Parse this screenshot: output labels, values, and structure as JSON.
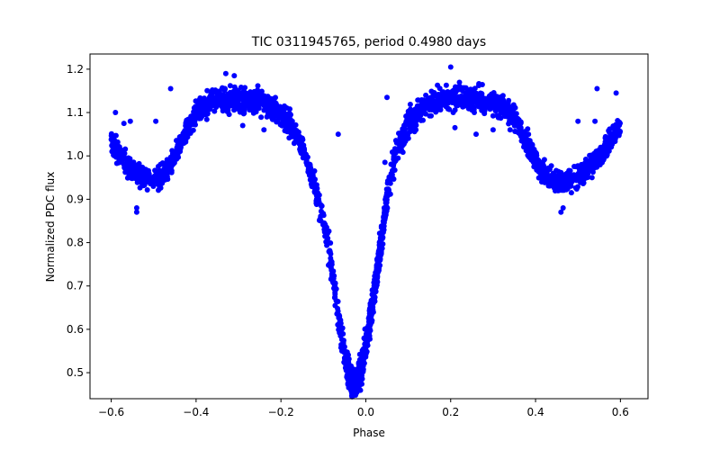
{
  "chart_data": {
    "type": "scatter",
    "title": "TIC 0311945765, period 0.4980 days",
    "xlabel": "Phase",
    "ylabel": "Normalized PDC flux",
    "xlim": [
      -0.65,
      0.665
    ],
    "ylim": [
      0.44,
      1.235
    ],
    "xticks": [
      -0.6,
      -0.4,
      -0.2,
      0.0,
      0.2,
      0.4,
      0.6
    ],
    "xtick_labels": [
      "−0.6",
      "−0.4",
      "−0.2",
      "0.0",
      "0.2",
      "0.4",
      "0.6"
    ],
    "yticks": [
      0.5,
      0.6,
      0.7,
      0.8,
      0.9,
      1.0,
      1.1,
      1.2
    ],
    "ytick_labels": [
      "0.5",
      "0.6",
      "0.7",
      "0.8",
      "0.9",
      "1.0",
      "1.1",
      "1.2"
    ],
    "grid": false,
    "marker_color": "#0000ff",
    "series": [
      {
        "x": [
          -0.6,
          -0.58,
          -0.56,
          -0.54,
          -0.52,
          -0.5,
          -0.48,
          -0.46,
          -0.44,
          -0.42,
          -0.4,
          -0.38,
          -0.36,
          -0.34,
          -0.32,
          -0.3,
          -0.28,
          -0.26,
          -0.24,
          -0.22,
          -0.2,
          -0.18,
          -0.16,
          -0.14,
          -0.12,
          -0.1,
          -0.09,
          -0.08,
          -0.07,
          -0.06,
          -0.05,
          -0.04,
          -0.03,
          -0.02,
          -0.01,
          0.0,
          0.01,
          0.02,
          0.03,
          0.04,
          0.05,
          0.06,
          0.07,
          0.08,
          0.09,
          0.1,
          0.12,
          0.14,
          0.16,
          0.18,
          0.2,
          0.22,
          0.24,
          0.26,
          0.28,
          0.3,
          0.32,
          0.34,
          0.36,
          0.38,
          0.4,
          0.42,
          0.44,
          0.46,
          0.48,
          0.5,
          0.52,
          0.54,
          0.56,
          0.58,
          0.6
        ],
        "y": [
          1.04,
          1.0,
          0.975,
          0.96,
          0.95,
          0.945,
          0.955,
          0.98,
          1.02,
          1.06,
          1.095,
          1.115,
          1.125,
          1.13,
          1.13,
          1.13,
          1.128,
          1.125,
          1.12,
          1.11,
          1.095,
          1.075,
          1.045,
          0.995,
          0.93,
          0.85,
          0.8,
          0.74,
          0.67,
          0.6,
          0.535,
          0.49,
          0.475,
          0.48,
          0.51,
          0.56,
          0.62,
          0.69,
          0.76,
          0.83,
          0.9,
          0.96,
          1.0,
          1.03,
          1.055,
          1.075,
          1.1,
          1.115,
          1.125,
          1.13,
          1.133,
          1.133,
          1.13,
          1.13,
          1.128,
          1.125,
          1.115,
          1.1,
          1.07,
          1.03,
          0.99,
          0.96,
          0.945,
          0.94,
          0.945,
          0.955,
          0.97,
          0.99,
          1.01,
          1.04,
          1.07
        ]
      }
    ],
    "outliers": {
      "x": [
        -0.59,
        -0.57,
        -0.555,
        -0.54,
        -0.54,
        -0.495,
        -0.46,
        -0.33,
        -0.31,
        -0.29,
        -0.24,
        -0.065,
        0.05,
        0.045,
        0.2,
        0.21,
        0.26,
        0.3,
        0.34,
        0.46,
        0.465,
        0.5,
        0.54,
        0.59,
        0.545
      ],
      "y": [
        1.1,
        1.075,
        1.08,
        0.87,
        0.88,
        1.08,
        1.155,
        1.19,
        1.185,
        1.07,
        1.06,
        1.05,
        1.135,
        0.985,
        1.205,
        1.065,
        1.05,
        1.06,
        1.06,
        0.87,
        0.88,
        1.08,
        1.08,
        1.145,
        1.155
      ]
    }
  }
}
